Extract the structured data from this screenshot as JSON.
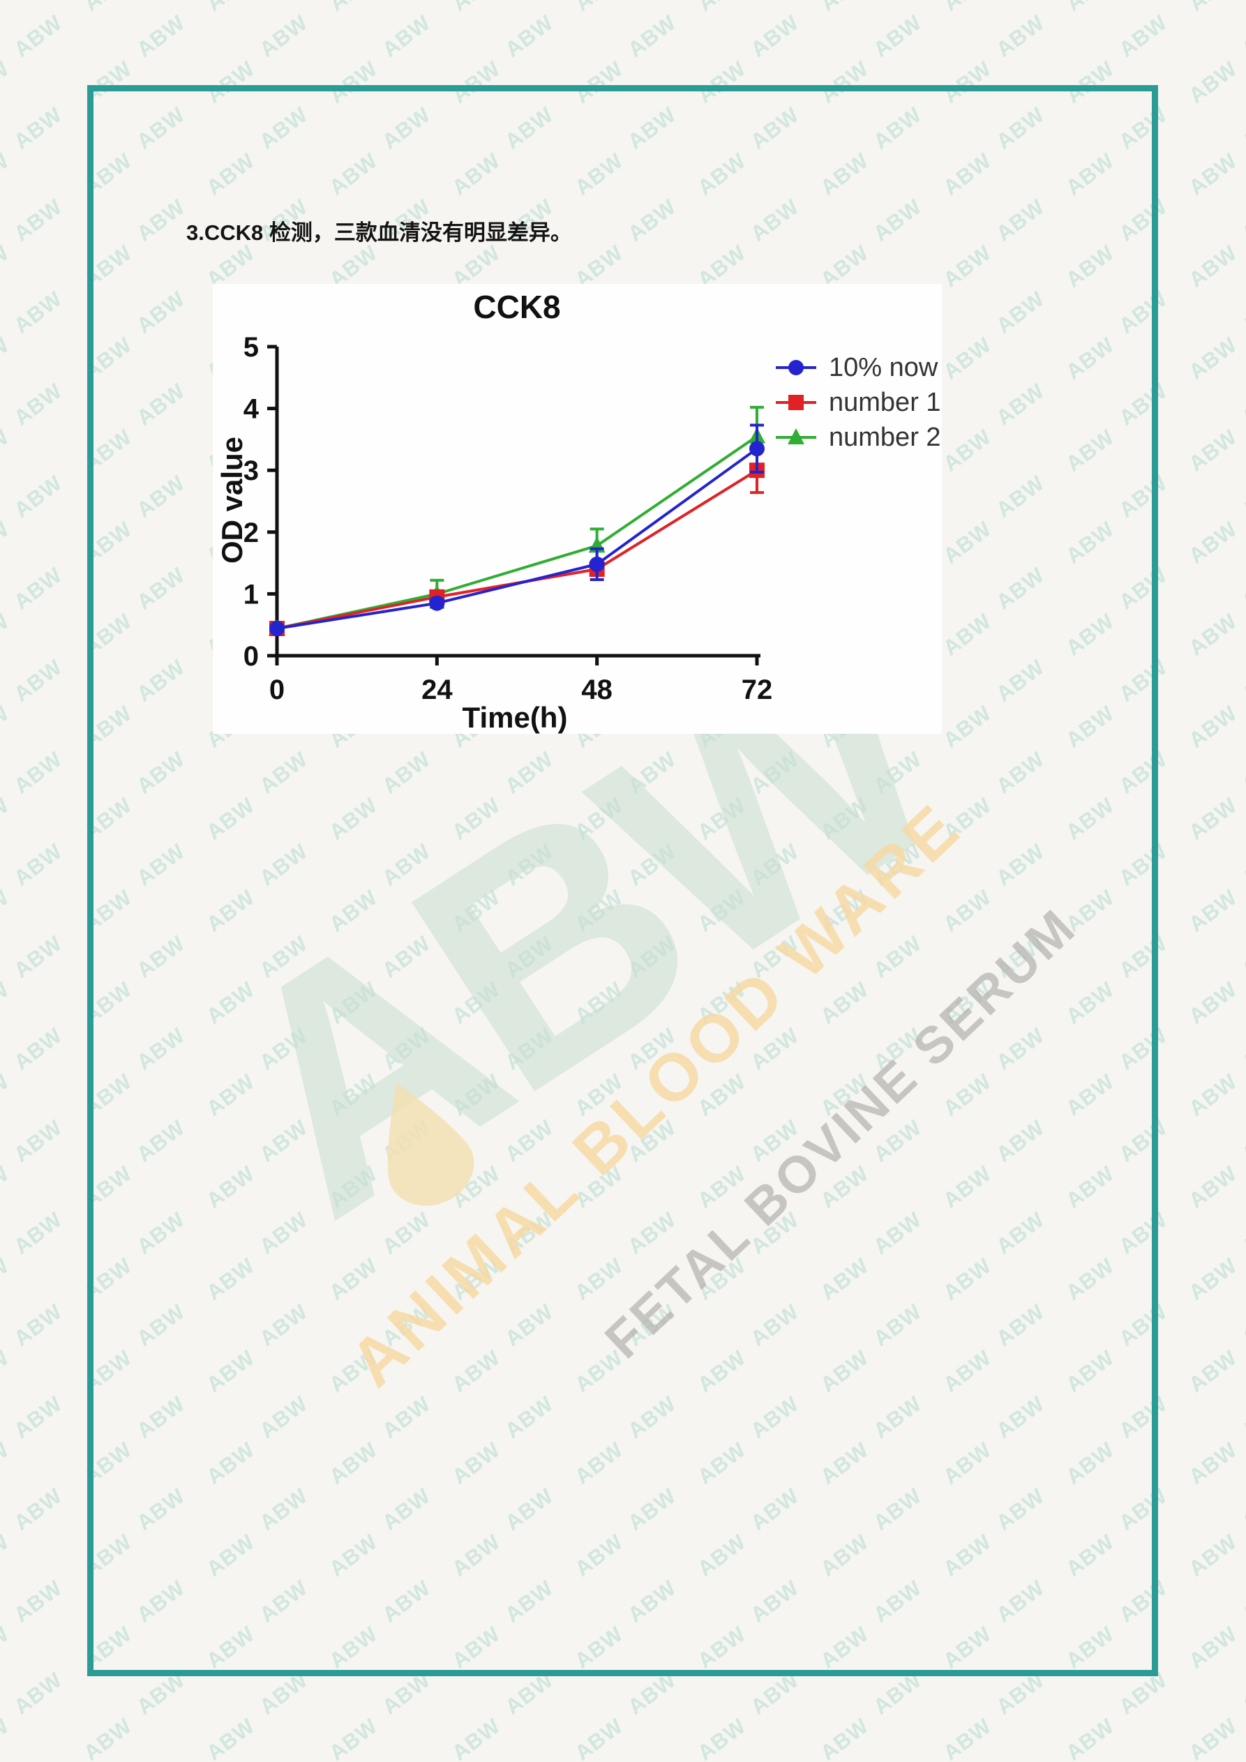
{
  "page": {
    "heading": "3.CCK8 检测，三款血清没有明显差异。",
    "background_color": "#f6f5f1",
    "border_color": "#2b9c95"
  },
  "watermark": {
    "tile_text": "ABW",
    "tile_color": "#d2e7df",
    "logo_text": "ABW",
    "logo_color": "#c9dfd2",
    "droplet_color": "#f4e0b2",
    "brand_line1": "ANIMAL BLOOD WARE",
    "brand_line1_color": "#f8d9a2",
    "brand_line2": "FETAL BOVINE SERUM",
    "brand_line2_color": "#b3b1ad"
  },
  "chart_data": {
    "type": "line",
    "title": "CCK8",
    "xlabel": "Time(h)",
    "ylabel": "OD value",
    "x": [
      0,
      24,
      48,
      72
    ],
    "xticks": [
      "0",
      "24",
      "48",
      "72"
    ],
    "yticks": [
      "0",
      "1",
      "2",
      "3",
      "4",
      "5"
    ],
    "xlim": [
      0,
      72
    ],
    "ylim": [
      0,
      5
    ],
    "grid": false,
    "legend_position": "right",
    "axis_color": "#111111",
    "series": [
      {
        "name": "10% now",
        "marker": "circle",
        "color": "#2323cf",
        "values": [
          0.44,
          0.85,
          1.48,
          3.35
        ],
        "errors": [
          0.04,
          0.06,
          0.25,
          0.38
        ]
      },
      {
        "name": "number 1",
        "marker": "square",
        "color": "#e02125",
        "values": [
          0.44,
          0.95,
          1.4,
          3.0
        ],
        "errors": [
          0.04,
          0.08,
          0.1,
          0.36
        ]
      },
      {
        "name": "number 2",
        "marker": "triangle",
        "color": "#2fae33",
        "values": [
          0.44,
          1.0,
          1.78,
          3.55
        ],
        "errors": [
          0.04,
          0.22,
          0.27,
          0.47
        ]
      }
    ]
  }
}
